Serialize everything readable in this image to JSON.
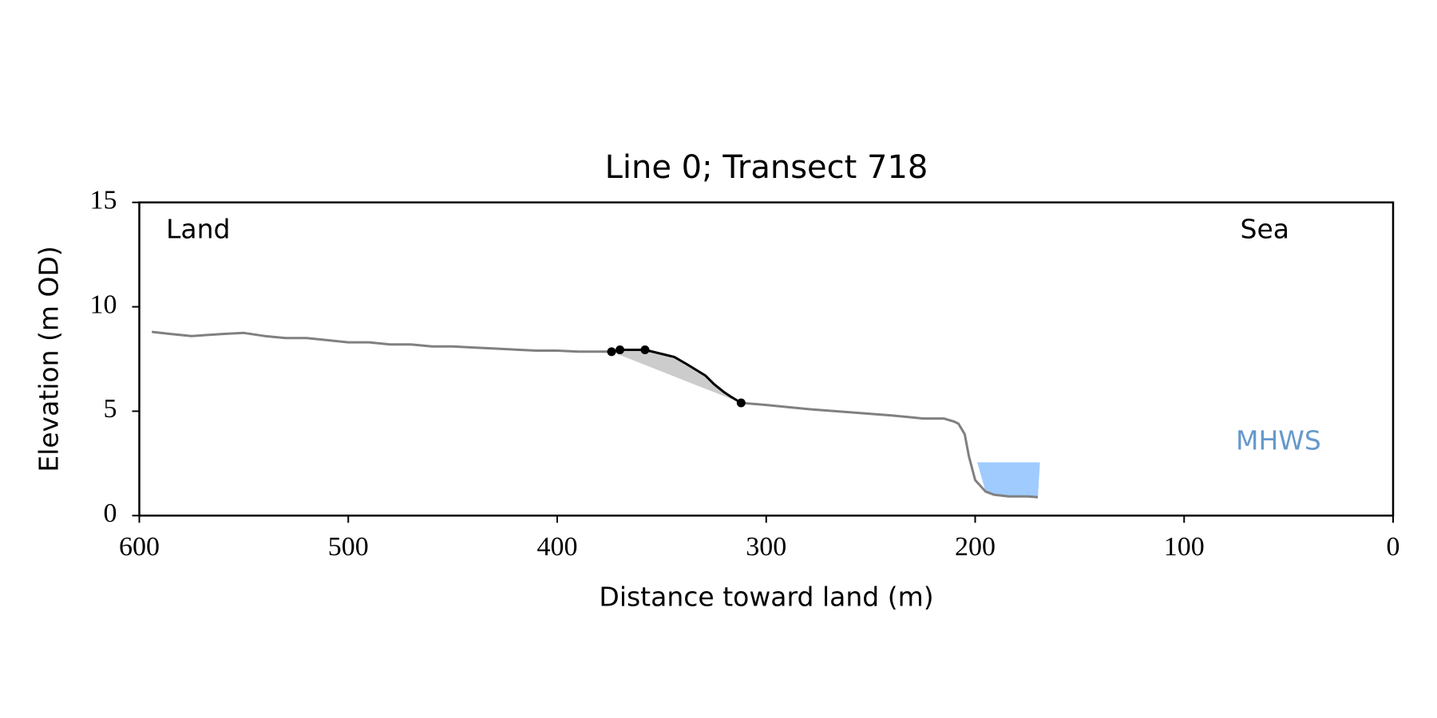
{
  "chart_data": {
    "type": "line",
    "title": "Line 0; Transect 718",
    "xlabel": "Distance toward land (m)",
    "ylabel": "Elevation (m OD)",
    "xlim": [
      600,
      0
    ],
    "xticks": [
      600,
      500,
      400,
      300,
      200,
      100,
      0
    ],
    "ylim": [
      0,
      15
    ],
    "yticks": [
      0,
      5,
      10,
      15
    ],
    "grid": false,
    "series": [
      {
        "color": "#808080",
        "x": [
          594,
          585,
          575,
          560,
          550,
          540,
          530,
          520,
          510,
          500,
          490,
          480,
          470,
          460,
          450,
          440,
          430,
          420,
          410,
          400,
          390,
          380,
          374,
          null,
          312,
          300,
          280,
          260,
          240,
          225,
          215,
          210,
          208,
          205,
          203,
          200,
          195,
          191,
          184,
          175,
          170
        ],
        "values": [
          8.8,
          8.7,
          8.6,
          8.7,
          8.75,
          8.6,
          8.5,
          8.5,
          8.4,
          8.3,
          8.3,
          8.2,
          8.2,
          8.1,
          8.1,
          8.05,
          8.0,
          7.95,
          7.9,
          7.9,
          7.85,
          7.85,
          7.85,
          null,
          5.4,
          5.3,
          5.1,
          4.95,
          4.8,
          4.65,
          4.65,
          4.5,
          4.4,
          3.9,
          2.85,
          1.7,
          1.15,
          1.0,
          0.92,
          0.92,
          0.88
        ]
      },
      {
        "color": "#000000",
        "fill_to_chord": "#cccccc",
        "x": [
          374,
          370,
          358,
          344,
          338,
          329,
          325,
          320,
          317,
          312
        ],
        "values": [
          7.85,
          7.94,
          7.94,
          7.6,
          7.25,
          6.7,
          6.3,
          5.9,
          5.7,
          5.4
        ]
      },
      {
        "color": "#000000",
        "marker": true,
        "line": false,
        "x": [
          374,
          370,
          358,
          312
        ],
        "values": [
          7.85,
          7.94,
          7.94,
          5.4
        ]
      }
    ],
    "mhws": {
      "label": "MHWS",
      "value": 2.55,
      "x_range": [
        199,
        169
      ],
      "color": "#9fcbff",
      "label_color": "#6699cc"
    },
    "annotations": [
      {
        "text": "Land"
      },
      {
        "text": "Sea"
      }
    ]
  }
}
